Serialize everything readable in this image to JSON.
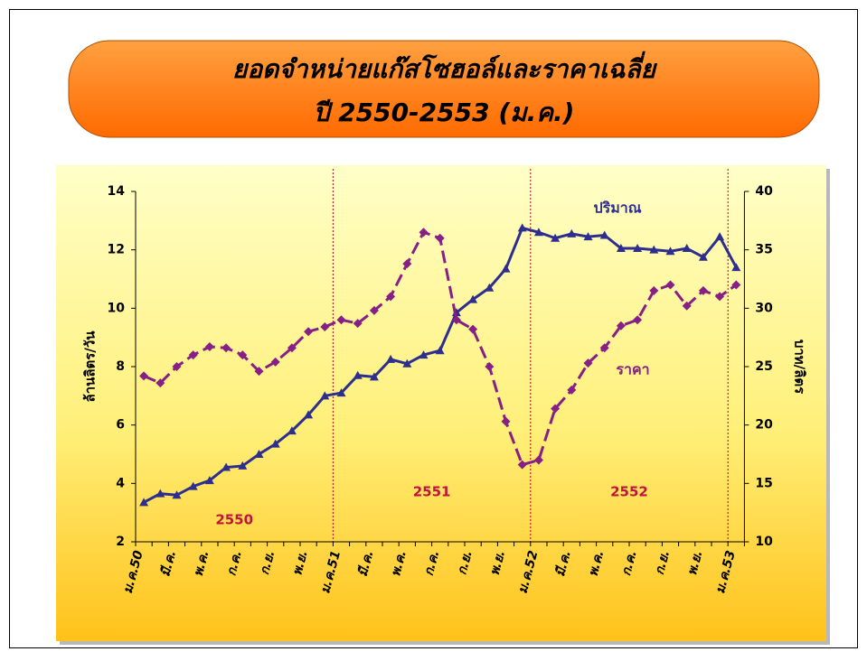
{
  "chart_data": {
    "type": "line",
    "title": "ยอดจำหน่ายแก๊สโซฮอล์และราคาเฉลี่ย",
    "subtitle": "ปี 2550-2553 (ม.ค.)",
    "ylabel": "ล้านลิตร/วัน",
    "y2label": "บาท/ลิตร",
    "categories": [
      "ม.ค.50",
      null,
      "มี.ค.",
      null,
      "พ.ค.",
      null,
      "ก.ค.",
      null,
      "ก.ย.",
      null,
      "พ.ย.",
      null,
      "ม.ค.51",
      null,
      "มี.ค.",
      null,
      "พ.ค.",
      null,
      "ก.ค.",
      null,
      "ก.ย.",
      null,
      "พ.ย.",
      null,
      "ม.ค.52",
      null,
      "มี.ค.",
      null,
      "พ.ค.",
      null,
      "ก.ค.",
      null,
      "ก.ย.",
      null,
      "พ.ย.",
      null,
      "ม.ค.53"
    ],
    "period_labels": [
      "2550",
      "2551",
      "2552"
    ],
    "series": [
      {
        "name": "ปริมาณ",
        "color": "#2e2e8f",
        "marker": "triangle",
        "dashed": false,
        "values": [
          3.35,
          3.65,
          3.6,
          3.9,
          4.1,
          4.55,
          4.6,
          5.0,
          5.35,
          5.8,
          6.35,
          7.0,
          7.1,
          7.7,
          7.65,
          8.25,
          8.1,
          8.4,
          8.55,
          9.85,
          10.3,
          10.7,
          11.35,
          12.75,
          12.6,
          12.4,
          12.55,
          12.45,
          12.5,
          12.05,
          12.05,
          12.0,
          11.95,
          12.05,
          11.75,
          12.45,
          11.4
        ]
      },
      {
        "name": "ราคา",
        "color": "#861f86",
        "marker": "diamond",
        "dashed": true,
        "axis": "y2",
        "values": [
          24.2,
          23.6,
          25,
          26,
          26.7,
          26.6,
          26,
          24.6,
          25.4,
          26.6,
          28,
          28.4,
          29,
          28.7,
          29.8,
          31,
          33.8,
          36.5,
          36,
          29,
          28.2,
          25,
          20.3,
          16.6,
          17,
          21.4,
          23,
          25.3,
          26.6,
          28.5,
          29,
          31.5,
          32,
          30.2,
          31.5,
          31,
          32
        ]
      }
    ],
    "ylim": [
      2,
      14
    ],
    "yticks": [
      2,
      4,
      6,
      8,
      10,
      12,
      14
    ],
    "y2lim": [
      10,
      40
    ],
    "y2ticks": [
      10,
      15,
      20,
      25,
      30,
      35,
      40
    ]
  }
}
